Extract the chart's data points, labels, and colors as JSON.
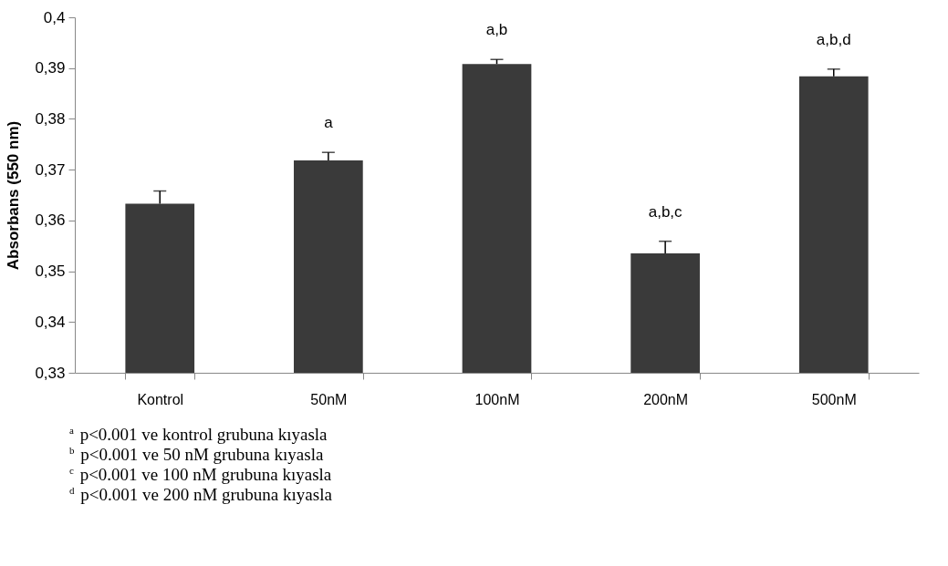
{
  "chart_data": {
    "type": "bar",
    "ylabel": "Absorbans (550 nm)",
    "categories": [
      "Kontrol",
      "50nM",
      "100nM",
      "200nM",
      "500nM"
    ],
    "values": [
      0.3633,
      0.3718,
      0.3908,
      0.3535,
      0.3884
    ],
    "errors": [
      [
        0.3633,
        0.3658
      ],
      [
        0.3718,
        0.3734
      ],
      [
        0.3908,
        0.3917
      ],
      [
        0.3535,
        0.3559
      ],
      [
        0.3884,
        0.3898
      ]
    ],
    "color": "#3a3a3a",
    "ylim": [
      0.33,
      0.4
    ],
    "yticks": [
      {
        "value": 0.33,
        "label": "0,33"
      },
      {
        "value": 0.34,
        "label": "0,34"
      },
      {
        "value": 0.35,
        "label": "0,35"
      },
      {
        "value": 0.36,
        "label": "0,36"
      },
      {
        "value": 0.37,
        "label": "0,37"
      },
      {
        "value": 0.38,
        "label": "0,38"
      },
      {
        "value": 0.39,
        "label": "0,39"
      },
      {
        "value": 0.4,
        "label": "0,4"
      }
    ],
    "grid": false,
    "annotations": [
      {
        "text": "a",
        "x": "50nM",
        "y": 0.3734
      },
      {
        "text": "a,b",
        "x": "100nM",
        "y": 0.3917
      },
      {
        "text": "a,b,c",
        "x": "200nM",
        "y": 0.3559
      },
      {
        "text": "a,b,d",
        "x": "500nM",
        "y": 0.3898
      },
      "$^{a}$ p<0.001 ve kontrol grubuna kıyasla",
      "$^{b}$ p<0.001 ve 50 nM grubuna kıyasla",
      "$^{c}$ p<0.001 ve 100 nM grubuna kıyasla",
      "$^{d}$ p<0.001 ve 200 nM grubuna kıyasla"
    ]
  }
}
